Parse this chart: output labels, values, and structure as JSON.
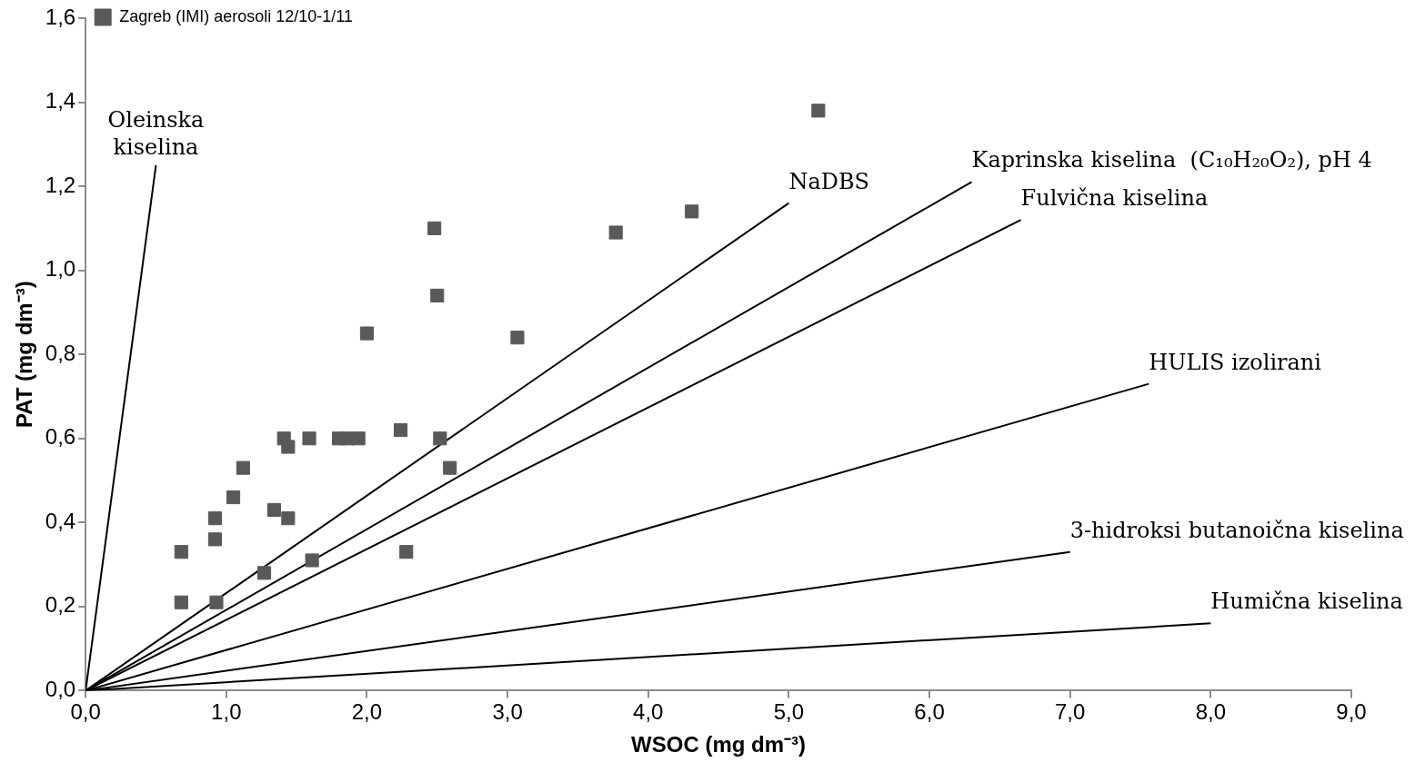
{
  "chart_data": {
    "type": "scatter",
    "xlabel": "WSOC (mg dm⁻³)",
    "ylabel": "PAT (mg dm⁻³)",
    "xlim": [
      0,
      9
    ],
    "ylim": [
      0,
      1.6
    ],
    "xticks": [
      {
        "value": 0,
        "label": "0,0"
      },
      {
        "value": 1,
        "label": "1,0"
      },
      {
        "value": 2,
        "label": "2,0"
      },
      {
        "value": 3,
        "label": "3,0"
      },
      {
        "value": 4,
        "label": "4,0"
      },
      {
        "value": 5,
        "label": "5,0"
      },
      {
        "value": 6,
        "label": "6,0"
      },
      {
        "value": 7,
        "label": "7,0"
      },
      {
        "value": 8,
        "label": "8,0"
      },
      {
        "value": 9,
        "label": "9,0"
      }
    ],
    "yticks": [
      {
        "value": 0,
        "label": "0,0"
      },
      {
        "value": 0.2,
        "label": "0,2"
      },
      {
        "value": 0.4,
        "label": "0,4"
      },
      {
        "value": 0.6,
        "label": "0,6"
      },
      {
        "value": 0.8,
        "label": "0,8"
      },
      {
        "value": 1.0,
        "label": "1,0"
      },
      {
        "value": 1.2,
        "label": "1,2"
      },
      {
        "value": 1.4,
        "label": "1,4"
      },
      {
        "value": 1.6,
        "label": "1,6"
      }
    ],
    "grid": false,
    "legend": "top left",
    "series": [
      {
        "name": "Zagreb (IMI) aerosoli 12/10-1/11",
        "marker": "square",
        "color": "#595959",
        "x": [
          0.68,
          0.68,
          0.93,
          0.92,
          0.92,
          1.05,
          1.12,
          1.27,
          1.34,
          1.41,
          1.44,
          1.44,
          1.59,
          1.61,
          1.8,
          1.86,
          1.94,
          2.0,
          2.24,
          2.28,
          2.48,
          2.5,
          2.52,
          2.59,
          3.07,
          3.77,
          4.31,
          5.21
        ],
        "values": [
          0.21,
          0.33,
          0.21,
          0.36,
          0.41,
          0.46,
          0.53,
          0.28,
          0.43,
          0.6,
          0.58,
          0.41,
          0.6,
          0.31,
          0.6,
          0.6,
          0.6,
          0.85,
          0.62,
          0.33,
          1.1,
          0.94,
          0.6,
          0.53,
          0.84,
          1.09,
          1.14,
          1.38
        ]
      },
      {
        "name": "Oleinska\nkiselina",
        "type": "line",
        "marker": "none",
        "color": "#000000",
        "x": [
          0,
          0.5
        ],
        "values": [
          0,
          1.25
        ]
      },
      {
        "name": "NaDBS",
        "type": "line",
        "marker": "none",
        "color": "#000000",
        "x": [
          0,
          5.0
        ],
        "values": [
          0,
          1.16
        ]
      },
      {
        "name": "Kaprinska kiselina  (C₁₀H₂₀O₂), pH 4",
        "type": "line",
        "marker": "none",
        "color": "#000000",
        "x": [
          0,
          6.3
        ],
        "values": [
          0,
          1.21
        ]
      },
      {
        "name": "Fulvična kiselina",
        "type": "line",
        "marker": "none",
        "color": "#000000",
        "x": [
          0,
          6.65
        ],
        "values": [
          0,
          1.12
        ]
      },
      {
        "name": "HULIS izolirani",
        "type": "line",
        "marker": "none",
        "color": "#000000",
        "x": [
          0,
          7.56
        ],
        "values": [
          0,
          0.73
        ]
      },
      {
        "name": "3-hidroksi butanoična kiselina",
        "type": "line",
        "marker": "none",
        "color": "#000000",
        "x": [
          0,
          7.0
        ],
        "values": [
          0,
          0.33
        ]
      },
      {
        "name": "Humična kiselina",
        "type": "line",
        "marker": "none",
        "color": "#000000",
        "x": [
          0,
          8.0
        ],
        "values": [
          0,
          0.16
        ]
      }
    ]
  }
}
